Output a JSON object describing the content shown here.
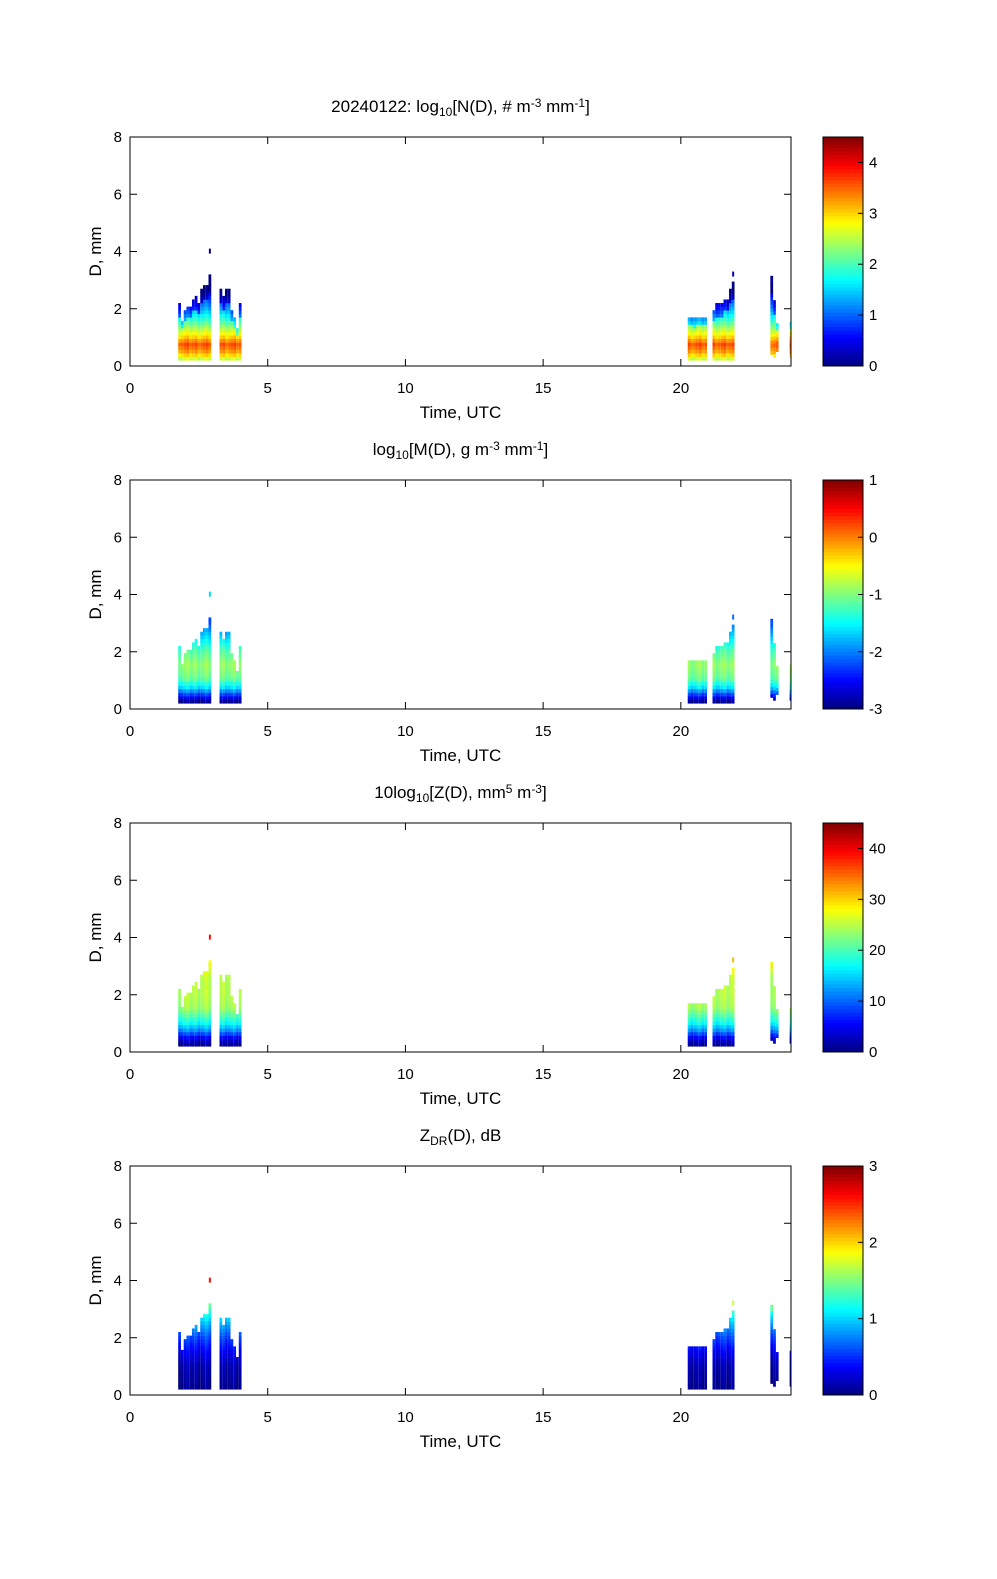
{
  "chart_data": {
    "type": "heatmap",
    "date": "20240122",
    "xlabel": "Time, UTC",
    "ylabel": "D, mm",
    "xlim": [
      0,
      24
    ],
    "ylim": [
      0,
      8
    ],
    "xticks": [
      0,
      5,
      10,
      15,
      20
    ],
    "yticks": [
      0,
      2,
      4,
      6,
      8
    ],
    "colormap": "jet",
    "columns_note": "time (UTC h), min D (mm), max D (mm)",
    "columns": [
      [
        1.8,
        0.2,
        2.1
      ],
      [
        1.9,
        0.2,
        1.5
      ],
      [
        2.0,
        0.2,
        1.9
      ],
      [
        2.1,
        0.2,
        2.0
      ],
      [
        2.2,
        0.2,
        2.0
      ],
      [
        2.3,
        0.2,
        2.3
      ],
      [
        2.4,
        0.2,
        2.4
      ],
      [
        2.5,
        0.2,
        2.2
      ],
      [
        2.6,
        0.2,
        2.6
      ],
      [
        2.7,
        0.2,
        2.8
      ],
      [
        2.8,
        0.2,
        2.8
      ],
      [
        2.9,
        0.2,
        3.1
      ],
      [
        3.3,
        0.2,
        2.6
      ],
      [
        3.4,
        0.2,
        2.4
      ],
      [
        3.5,
        0.2,
        2.6
      ],
      [
        3.6,
        0.2,
        2.6
      ],
      [
        3.7,
        0.2,
        1.9
      ],
      [
        3.8,
        0.2,
        1.6
      ],
      [
        3.9,
        0.2,
        1.3
      ],
      [
        4.0,
        0.2,
        2.1
      ],
      [
        20.3,
        0.2,
        1.7
      ],
      [
        20.4,
        0.2,
        1.7
      ],
      [
        20.5,
        0.2,
        1.6
      ],
      [
        20.6,
        0.2,
        1.7
      ],
      [
        20.7,
        0.2,
        1.7
      ],
      [
        20.8,
        0.2,
        1.7
      ],
      [
        20.9,
        0.2,
        1.7
      ],
      [
        21.2,
        0.2,
        1.9
      ],
      [
        21.3,
        0.2,
        2.1
      ],
      [
        21.4,
        0.2,
        2.1
      ],
      [
        21.5,
        0.2,
        2.1
      ],
      [
        21.6,
        0.2,
        2.3
      ],
      [
        21.7,
        0.2,
        2.3
      ],
      [
        21.8,
        0.2,
        2.6
      ],
      [
        21.9,
        0.2,
        2.9
      ],
      [
        23.3,
        0.4,
        3.1
      ],
      [
        23.4,
        0.3,
        2.2
      ],
      [
        23.5,
        0.5,
        1.5
      ],
      [
        24.0,
        0.3,
        1.5
      ]
    ],
    "sparse_drops": [
      [
        2.9,
        4.1
      ],
      [
        21.9,
        3.3
      ],
      [
        23.3,
        3.1
      ]
    ],
    "panels": [
      {
        "id": "N",
        "title": [
          {
            "t": "20240122: log"
          },
          {
            "t": "10",
            "s": "sub"
          },
          {
            "t": "[N(D), # m"
          },
          {
            "t": "-3",
            "s": "sup"
          },
          {
            "t": " mm"
          },
          {
            "t": "-1",
            "s": "sup"
          },
          {
            "t": "]"
          }
        ],
        "clim": [
          0,
          4.5
        ],
        "cticks": [
          0,
          1,
          2,
          3,
          4
        ],
        "profile_D": [
          0.2,
          0.4,
          0.7,
          1.0,
          1.5,
          2.0,
          2.5,
          3.0,
          4.2
        ],
        "profile_values": [
          2.6,
          3.2,
          3.6,
          2.9,
          2.0,
          1.2,
          0.6,
          0.3,
          0.05
        ]
      },
      {
        "id": "M",
        "title": [
          {
            "t": "log"
          },
          {
            "t": "10",
            "s": "sub"
          },
          {
            "t": "[M(D), g m"
          },
          {
            "t": "-3",
            "s": "sup"
          },
          {
            "t": " mm"
          },
          {
            "t": "-1",
            "s": "sup"
          },
          {
            "t": "]"
          }
        ],
        "clim": [
          -3,
          1
        ],
        "cticks": [
          -3,
          -2,
          -1,
          0,
          1
        ],
        "profile_D": [
          0.2,
          0.4,
          0.7,
          1.0,
          1.5,
          2.0,
          2.5,
          3.0,
          4.2
        ],
        "profile_values": [
          -2.9,
          -2.4,
          -1.6,
          -1.1,
          -0.9,
          -1.2,
          -1.7,
          -2.2,
          -1.6
        ]
      },
      {
        "id": "Z",
        "title": [
          {
            "t": "10log"
          },
          {
            "t": "10",
            "s": "sub"
          },
          {
            "t": "[Z(D),  mm"
          },
          {
            "t": "5",
            "s": "sup"
          },
          {
            "t": " m"
          },
          {
            "t": "-3",
            "s": "sup"
          },
          {
            "t": "]"
          }
        ],
        "clim": [
          0,
          45
        ],
        "cticks": [
          0,
          10,
          20,
          30,
          40
        ],
        "profile_D": [
          0.2,
          0.4,
          0.7,
          1.0,
          1.5,
          2.0,
          2.5,
          3.0,
          4.2
        ],
        "profile_values": [
          1,
          4,
          12,
          18,
          24,
          25,
          25,
          28,
          40
        ]
      },
      {
        "id": "ZDR",
        "title": [
          {
            "t": "Z"
          },
          {
            "t": "DR",
            "s": "sub"
          },
          {
            "t": "(D), dB"
          }
        ],
        "clim": [
          0,
          3
        ],
        "cticks": [
          0,
          1,
          2,
          3
        ],
        "profile_D": [
          0.2,
          1.0,
          1.5,
          2.0,
          2.5,
          3.0,
          4.2
        ],
        "profile_values": [
          0.05,
          0.15,
          0.35,
          0.6,
          0.95,
          1.4,
          2.7
        ]
      }
    ]
  }
}
